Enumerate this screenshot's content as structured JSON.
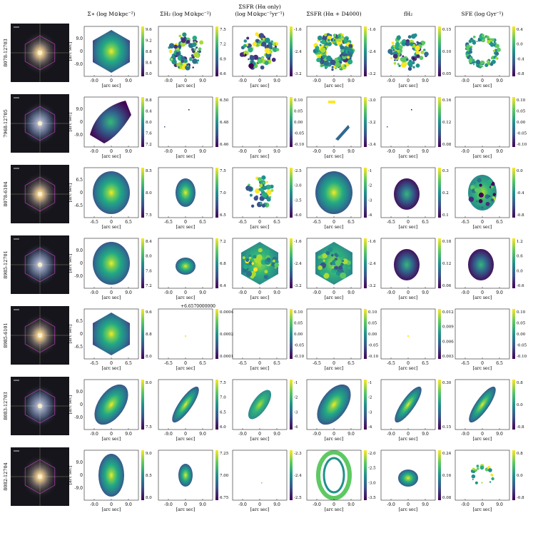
{
  "figure": {
    "column_titles": [
      {
        "line1": "",
        "line2": "Σ∗ (log M⊙kpc⁻²)"
      },
      {
        "line1": "",
        "line2": "ΣH₂ (log M⊙kpc⁻²)"
      },
      {
        "line1": "ΣSFR (Hα only)",
        "line2": "(log M⊙kpc⁻²yr⁻¹)"
      },
      {
        "line1": "",
        "line2": "ΣSFR (Hα + D4000)"
      },
      {
        "line1": "",
        "line2": "fH₂"
      },
      {
        "line1": "",
        "line2": "SFE (log Gyr⁻¹)"
      }
    ],
    "axis_label_x": "[arc sec]",
    "axis_label_y": "[arc sec]",
    "offset_text": "+6.6570000000",
    "rows": [
      {
        "id": "8078-12703",
        "xticks": [
          "-9.0",
          "0",
          "9.0"
        ],
        "yticks": [
          "9.0",
          "0",
          "-9.0"
        ],
        "colorbars": [
          [
            "9.6",
            "9.2",
            "8.8",
            "8.4",
            "8.0"
          ],
          [
            "7.5",
            "7.2",
            "6.9",
            "6.6"
          ],
          [
            "-1.6",
            "-2.4",
            "-3.2"
          ],
          [
            "-1.6",
            "-2.4",
            "-3.2"
          ],
          [
            "0.15",
            "0.10",
            "0.05"
          ],
          [
            "0.4",
            "0.0",
            "-0.4",
            "-0.8"
          ]
        ],
        "maps": [
          "hexagon",
          "ring-patchy",
          "ring-patchy",
          "ring-full",
          "ring-patchy",
          "ring-thin"
        ]
      },
      {
        "id": "7968-12705",
        "xticks": [
          "-9.0",
          "0",
          "9.0"
        ],
        "yticks": [
          "9.0",
          "0",
          "-9.0"
        ],
        "colorbars": [
          [
            "8.8",
            "8.4",
            "8.0",
            "7.6",
            "7.2"
          ],
          [
            "6.50",
            "6.48",
            "6.46"
          ],
          [
            "0.10",
            "0.05",
            "0.00",
            "-0.05",
            "-0.10"
          ],
          [
            "-3.0",
            "-3.2",
            "-3.4"
          ],
          [
            "0.16",
            "0.12",
            "0.08"
          ],
          [
            "0.10",
            "0.05",
            "0.00",
            "-0.05",
            "-0.10"
          ]
        ],
        "maps": [
          "irregular",
          "dots",
          "empty",
          "fragments",
          "dots",
          "empty"
        ]
      },
      {
        "id": "8078-6104",
        "xticks": [
          "-6.5",
          "0",
          "6.5"
        ],
        "yticks": [
          "6.5",
          "0",
          "-6.5"
        ],
        "colorbars": [
          [
            "8.5",
            "8.0",
            "7.5"
          ],
          [
            "7.5",
            "7.0",
            "6.5"
          ],
          [
            "-2.5",
            "-3.0",
            "-3.5",
            "-4.0"
          ],
          [
            "-1",
            "-2",
            "-3",
            "-4"
          ],
          [
            "0.3",
            "0.2",
            "0.1"
          ],
          [
            "0.0",
            "-0.4",
            "-0.8"
          ]
        ],
        "maps": [
          "disk-large",
          "blob-center",
          "scattered",
          "disk-large",
          "blob-medium",
          "disk-medium"
        ]
      },
      {
        "id": "8985-12701",
        "xticks": [
          "-9.0",
          "0",
          "9.0"
        ],
        "yticks": [
          "9.0",
          "0",
          "-9.0"
        ],
        "colorbars": [
          [
            "8.4",
            "8.0",
            "7.6",
            "7.2"
          ],
          [
            "7.2",
            "6.8",
            "6.4"
          ],
          [
            "-1.6",
            "-2.4",
            "-3.2"
          ],
          [
            "-1.6",
            "-2.4",
            "-3.2"
          ],
          [
            "0.18",
            "0.12",
            "0.06"
          ],
          [
            "1.2",
            "0.6",
            "0.0",
            "-0.6"
          ]
        ],
        "maps": [
          "disk-large",
          "blob-small",
          "hexagon-patchy",
          "hexagon-patchy",
          "blob-medium",
          "blob-medium"
        ]
      },
      {
        "id": "8985-6101",
        "xticks": [
          "-6.5",
          "0",
          "6.5"
        ],
        "yticks": [
          "6.5",
          "0",
          "-6.5"
        ],
        "colorbars": [
          [
            "9.6",
            "8.8",
            "8.0"
          ],
          [
            "0.0004",
            "0.0002",
            "0.0001"
          ],
          [
            "0.10",
            "0.05",
            "0.00",
            "-0.05",
            "-0.10"
          ],
          [
            "0.10",
            "0.05",
            "0.00",
            "-0.05",
            "-0.10"
          ],
          [
            "0.012",
            "0.009",
            "0.006",
            "0.003"
          ],
          [
            "0.10",
            "0.05",
            "0.00",
            "-0.05",
            "-0.10"
          ]
        ],
        "maps": [
          "hexagon",
          "dot-center",
          "empty",
          "empty",
          "dot-center",
          "empty"
        ]
      },
      {
        "id": "8083-12703",
        "xticks": [
          "-9.0",
          "0",
          "9.0"
        ],
        "yticks": [
          "9.0",
          "0",
          "-9.0"
        ],
        "colorbars": [
          [
            "8.0",
            "7.5"
          ],
          [
            "7.5",
            "7.0",
            "6.5",
            "6.0"
          ],
          [
            "-1",
            "-2",
            "-3",
            "-4"
          ],
          [
            "-1",
            "-2",
            "-3",
            "-4"
          ],
          [
            "0.30",
            "0.15"
          ],
          [
            "0.8",
            "0.0",
            "-0.8"
          ]
        ],
        "maps": [
          "elongated",
          "diagonal",
          "diagonal-small",
          "elongated",
          "diagonal",
          "diagonal"
        ]
      },
      {
        "id": "8082-12704",
        "xticks": [
          "-9.0",
          "0",
          "9.0"
        ],
        "yticks": [
          "9.0",
          "0",
          "-9.0"
        ],
        "colorbars": [
          [
            "9.0",
            "8.5",
            "8.0"
          ],
          [
            "7.25",
            "7.00",
            "6.75"
          ],
          [
            "-2.3",
            "-2.4",
            "-2.5"
          ],
          [
            "-2.0",
            "-2.5",
            "-3.0",
            "-3.5"
          ],
          [
            "0.24",
            "0.16",
            "0.08"
          ],
          [
            "0.8",
            "0.0",
            "-0.8"
          ]
        ],
        "maps": [
          "oval",
          "oval-small",
          "tiny-dots",
          "oval-ring",
          "blob-small",
          "partial-ring"
        ]
      }
    ]
  }
}
